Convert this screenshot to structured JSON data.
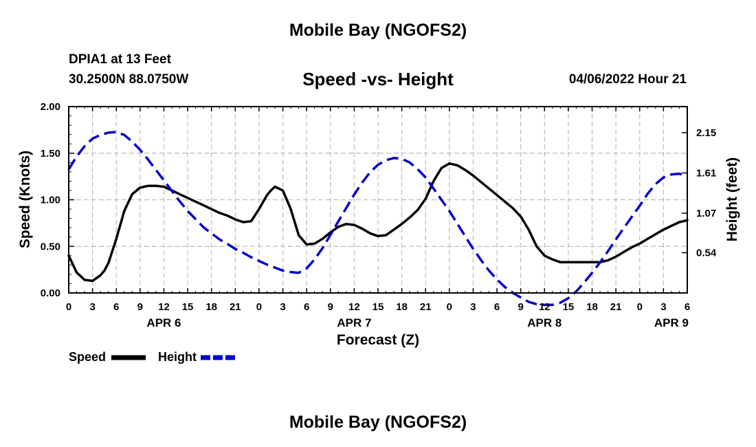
{
  "header": {
    "title": "Mobile Bay (NGOFS2)",
    "station": "DPIA1 at 13 Feet",
    "coordinates": "30.2500N  88.0750W",
    "subtitle": "Speed -vs- Height",
    "datetime": "04/06/2022 Hour 21"
  },
  "footer": {
    "title": "Mobile Bay (NGOFS2)"
  },
  "chart_data": {
    "type": "line",
    "title": "Speed -vs- Height",
    "xlabel": "Forecast (Z)",
    "ylabel": "Speed (Knots)",
    "y2label": "Height (feet)",
    "xlim": [
      0,
      78
    ],
    "ylim": [
      0,
      2.0
    ],
    "y2lim": [
      0,
      2.5
    ],
    "x_ticks": [
      0,
      3,
      6,
      9,
      12,
      15,
      18,
      21,
      24,
      27,
      30,
      33,
      36,
      39,
      42,
      45,
      48,
      51,
      54,
      57,
      60,
      63,
      66,
      69,
      72,
      75,
      78
    ],
    "x_tick_labels": [
      "0",
      "3",
      "6",
      "9",
      "12",
      "15",
      "18",
      "21",
      "0",
      "3",
      "6",
      "9",
      "12",
      "15",
      "18",
      "21",
      "0",
      "3",
      "6",
      "9",
      "12",
      "15",
      "18",
      "21",
      "0",
      "3",
      "6"
    ],
    "y_ticks": [
      0,
      0.5,
      1.0,
      1.5,
      2.0
    ],
    "y_tick_labels": [
      "0.00",
      "0.50",
      "1.00",
      "1.50",
      "2.00"
    ],
    "y2_ticks": [
      0.54,
      1.07,
      1.61,
      2.15
    ],
    "y2_tick_labels": [
      "0.54",
      "1.07",
      "1.61",
      "2.15"
    ],
    "day_labels": [
      {
        "label": "APR 6",
        "x": 12
      },
      {
        "label": "APR 7",
        "x": 36
      },
      {
        "label": "APR 8",
        "x": 60
      },
      {
        "label": "APR 9",
        "x": 76
      }
    ],
    "legend": "bottom-left",
    "grid": true,
    "series": [
      {
        "name": "Speed",
        "axis": "left",
        "color": "#000000",
        "dash": "solid",
        "x": [
          0,
          1,
          2,
          3,
          4,
          4.5,
          5,
          6,
          7,
          8,
          9,
          10,
          11,
          12,
          13,
          14,
          15,
          16,
          17,
          18,
          19,
          20,
          21,
          22,
          23,
          24,
          25,
          25.5,
          26,
          27,
          28,
          29,
          30,
          31,
          32,
          33,
          34,
          35,
          36,
          37,
          38,
          39,
          40,
          41,
          42,
          43,
          44,
          45,
          46,
          47,
          48,
          49,
          50,
          51,
          52,
          53,
          54,
          55,
          56,
          57,
          58,
          59,
          60,
          61,
          62,
          63,
          64,
          65,
          66,
          67,
          68,
          69,
          70,
          71,
          72,
          73,
          74,
          75,
          76,
          77,
          78
        ],
        "values": [
          0.4,
          0.22,
          0.14,
          0.13,
          0.19,
          0.24,
          0.32,
          0.58,
          0.88,
          1.06,
          1.13,
          1.15,
          1.15,
          1.14,
          1.1,
          1.06,
          1.02,
          0.98,
          0.94,
          0.9,
          0.86,
          0.83,
          0.79,
          0.76,
          0.77,
          0.9,
          1.05,
          1.1,
          1.14,
          1.1,
          0.9,
          0.62,
          0.52,
          0.53,
          0.58,
          0.65,
          0.71,
          0.74,
          0.73,
          0.69,
          0.64,
          0.61,
          0.62,
          0.68,
          0.74,
          0.81,
          0.89,
          1.01,
          1.2,
          1.34,
          1.39,
          1.37,
          1.32,
          1.26,
          1.19,
          1.12,
          1.05,
          0.98,
          0.91,
          0.82,
          0.68,
          0.5,
          0.4,
          0.36,
          0.33,
          0.33,
          0.33,
          0.33,
          0.33,
          0.33,
          0.35,
          0.39,
          0.44,
          0.49,
          0.53,
          0.58,
          0.63,
          0.68,
          0.72,
          0.76,
          0.78
        ]
      },
      {
        "name": "Height",
        "axis": "right",
        "color": "#0000cc",
        "dash": "dashed",
        "x": [
          0,
          1,
          2,
          3,
          4,
          5,
          6,
          7,
          8,
          9,
          10,
          11,
          12,
          13,
          14,
          15,
          16,
          17,
          18,
          19,
          20,
          21,
          22,
          23,
          24,
          25,
          26,
          27,
          28,
          29,
          30,
          31,
          32,
          33,
          34,
          35,
          36,
          37,
          38,
          39,
          40,
          41,
          42,
          43,
          44,
          45,
          46,
          47,
          48,
          49,
          50,
          51,
          52,
          53,
          54,
          55,
          56,
          57,
          58,
          59,
          60,
          61,
          62,
          63,
          64,
          65,
          66,
          67,
          68,
          69,
          70,
          71,
          72,
          73,
          74,
          75,
          76,
          77,
          78
        ],
        "values": [
          1.66,
          1.83,
          1.97,
          2.07,
          2.12,
          2.15,
          2.16,
          2.12,
          2.03,
          1.92,
          1.79,
          1.65,
          1.51,
          1.37,
          1.23,
          1.1,
          0.99,
          0.88,
          0.8,
          0.72,
          0.66,
          0.59,
          0.54,
          0.48,
          0.43,
          0.38,
          0.34,
          0.3,
          0.28,
          0.27,
          0.33,
          0.45,
          0.6,
          0.78,
          0.96,
          1.14,
          1.32,
          1.48,
          1.62,
          1.72,
          1.78,
          1.81,
          1.8,
          1.75,
          1.66,
          1.55,
          1.4,
          1.25,
          1.1,
          0.93,
          0.76,
          0.59,
          0.44,
          0.3,
          0.18,
          0.08,
          0.0,
          -0.06,
          -0.12,
          -0.15,
          -0.16,
          -0.16,
          -0.13,
          -0.07,
          0.02,
          0.14,
          0.27,
          0.41,
          0.56,
          0.72,
          0.87,
          1.02,
          1.17,
          1.33,
          1.46,
          1.55,
          1.59,
          1.6,
          1.56
        ]
      }
    ]
  }
}
